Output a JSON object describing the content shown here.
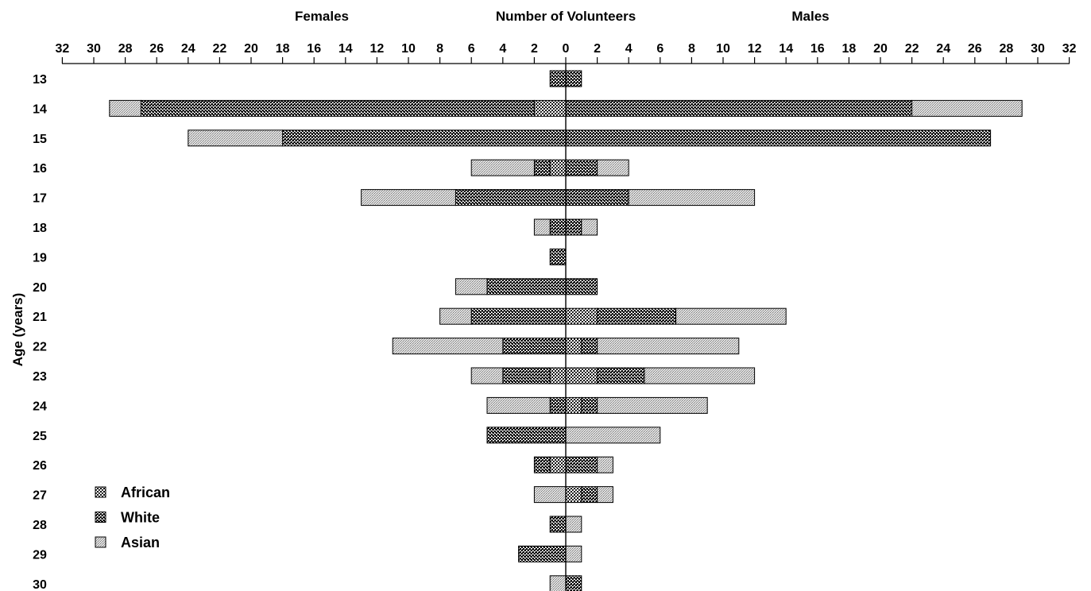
{
  "labels": {
    "left_header": "Females",
    "center_header": "Number of Volunteers",
    "right_header": "Males",
    "y_axis_label": "Age (years)"
  },
  "legend": [
    {
      "name": "African",
      "pattern": "african"
    },
    {
      "name": "White",
      "pattern": "white"
    },
    {
      "name": "Asian",
      "pattern": "asian"
    }
  ],
  "colors": {
    "ink": "#000000",
    "background": "#ffffff"
  },
  "chart_data": {
    "type": "bar",
    "orientation": "horizontal",
    "stacked": true,
    "diverging": true,
    "xlim": [
      -32,
      32
    ],
    "x_ticks": [
      32,
      30,
      28,
      26,
      24,
      22,
      20,
      18,
      16,
      14,
      12,
      10,
      8,
      6,
      4,
      2,
      0,
      2,
      4,
      6,
      8,
      10,
      12,
      14,
      16,
      18,
      20,
      22,
      24,
      26,
      28,
      30,
      32
    ],
    "categories": [
      "13",
      "14",
      "15",
      "16",
      "17",
      "18",
      "19",
      "20",
      "21",
      "22",
      "23",
      "24",
      "25",
      "26",
      "27",
      "28",
      "29",
      "30"
    ],
    "series": [
      {
        "name": "African",
        "females": [
          0,
          2,
          0,
          1,
          0,
          0,
          0,
          0,
          0,
          0,
          1,
          0,
          0,
          1,
          0,
          0,
          0,
          0
        ],
        "males": [
          0,
          0,
          0,
          0,
          0,
          0,
          0,
          0,
          2,
          1,
          2,
          1,
          0,
          0,
          1,
          0,
          0,
          0
        ]
      },
      {
        "name": "White",
        "females": [
          1,
          25,
          18,
          1,
          7,
          1,
          1,
          5,
          6,
          4,
          3,
          1,
          5,
          1,
          0,
          1,
          3,
          0
        ],
        "males": [
          1,
          22,
          27,
          2,
          4,
          1,
          0,
          2,
          5,
          1,
          3,
          1,
          0,
          2,
          1,
          0,
          0,
          1
        ]
      },
      {
        "name": "Asian",
        "females": [
          0,
          2,
          6,
          4,
          6,
          1,
          0,
          2,
          2,
          7,
          2,
          4,
          0,
          0,
          2,
          0,
          0,
          1
        ],
        "males": [
          0,
          7,
          0,
          2,
          8,
          1,
          0,
          0,
          7,
          9,
          7,
          7,
          6,
          1,
          1,
          1,
          1,
          0
        ]
      }
    ]
  }
}
